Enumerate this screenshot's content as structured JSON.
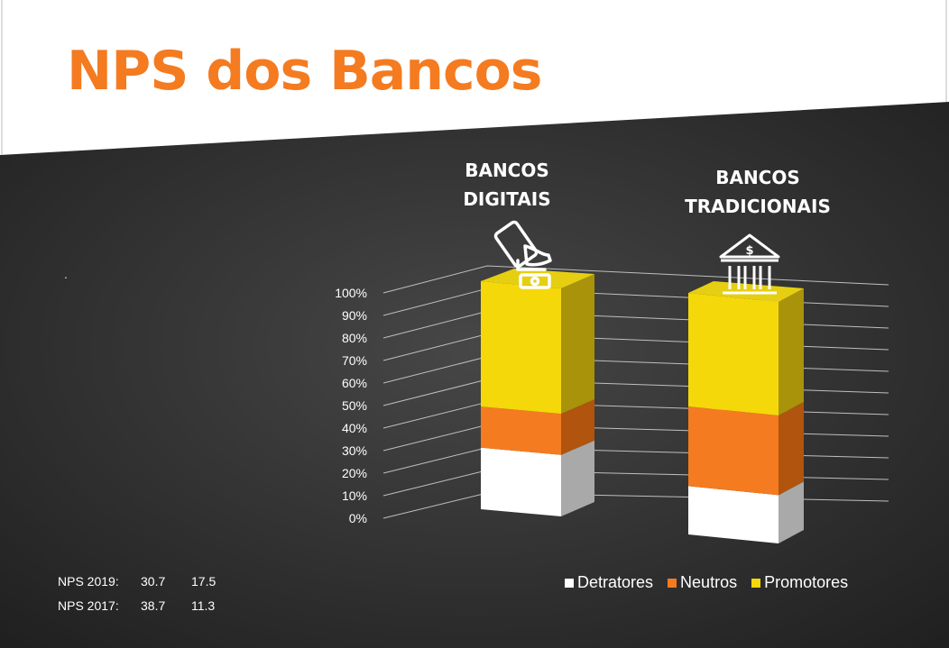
{
  "slide": {
    "title": "NPS dos Bancos",
    "note": ".",
    "nps_rows": [
      {
        "label": "NPS 2019:",
        "digitais": "30.7",
        "tradicionais": "17.5"
      },
      {
        "label": "NPS 2017:",
        "digitais": "38.7",
        "tradicionais": "11.3"
      }
    ],
    "icons": [
      "mobile-payment-icon",
      "bank-building-icon"
    ]
  },
  "colors": {
    "title": "#f47b20",
    "background_dark": "#2b2b2b",
    "detratores": "#ffffff",
    "neutros": "#f47b20",
    "promotores": "#f4d80a"
  },
  "chart_data": {
    "type": "bar",
    "stacked": true,
    "percent_stacked": true,
    "style": "3d",
    "categories": [
      "BANCOS DIGITAIS",
      "BANCOS TRADICIONAIS"
    ],
    "category_lines": [
      [
        "BANCOS",
        "DIGITAIS"
      ],
      [
        "BANCOS",
        "TRADICIONAIS"
      ]
    ],
    "series": [
      {
        "name": "Detratores",
        "values": [
          27,
          20
        ]
      },
      {
        "name": "Neutros",
        "values": [
          18,
          33
        ]
      },
      {
        "name": "Promotores",
        "values": [
          55,
          47
        ]
      }
    ],
    "yticks": [
      "0%",
      "10%",
      "20%",
      "30%",
      "40%",
      "50%",
      "60%",
      "70%",
      "80%",
      "90%",
      "100%"
    ],
    "ylim": [
      0,
      100
    ],
    "grid": true,
    "legend_position": "bottom"
  }
}
